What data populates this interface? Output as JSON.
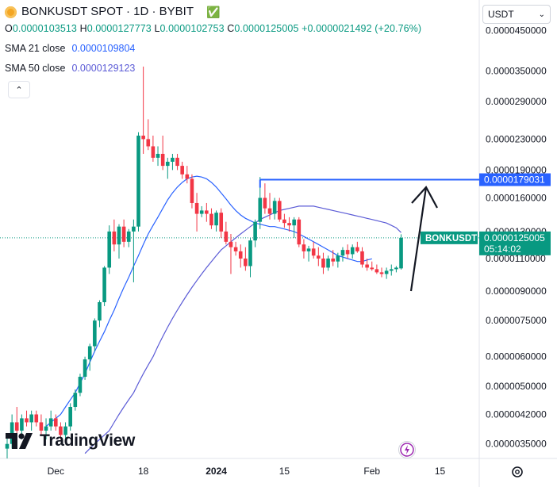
{
  "header": {
    "symbol": "BONKUSDT SPOT · 1D · BYBIT",
    "ohlc": {
      "o_label": "O",
      "o": "0.0000103513",
      "h_label": "H",
      "h": "0.0000127773",
      "l_label": "L",
      "l": "0.0000102753",
      "c_label": "C",
      "c": "0.0000125005",
      "change": "+0.0000021492 (+20.76%)"
    },
    "sma21_label": "SMA 21 close",
    "sma21_value": "0.0000109804",
    "sma50_label": "SMA 50 close",
    "sma50_value": "0.0000129123"
  },
  "controls": {
    "currency": "USDT",
    "collapse_icon": "chevron-up-icon",
    "alert_icon": "lightning-icon",
    "settings_icon": "gear-icon"
  },
  "branding": {
    "logo_text": "TradingView"
  },
  "colors": {
    "up": "#089981",
    "down": "#f23645",
    "sma21": "#2962ff",
    "sma50": "#5b5bd6",
    "level": "#2962ff"
  },
  "price_axis": {
    "ticks": [
      "0.0000450000",
      "0.0000350000",
      "0.0000290000",
      "0.0000230000",
      "0.0000190000",
      "0.0000160000",
      "0.0000130000",
      "0.0000110000",
      "0.0000090000",
      "0.0000075000",
      "0.0000060000",
      "0.0000050000",
      "0.0000042000",
      "0.0000035000"
    ],
    "level_label": "0.0000179031",
    "symbol_tag": "BONKUSDT",
    "last_price": "0.0000125005",
    "countdown": "05:14:02"
  },
  "time_axis": {
    "ticks": [
      "Dec",
      "18",
      "2024",
      "15",
      "Feb",
      "15"
    ]
  },
  "chart_data": {
    "type": "candlestick",
    "scale": "log",
    "ylim": [
      3.2e-06,
      5.3e-05
    ],
    "horizontal_level": 1.79031e-05,
    "series": [
      {
        "name": "BONKUSDT",
        "kind": "candles",
        "ohlc": [
          [
            3.4e-06,
            3.7e-06,
            3.2e-06,
            3.5e-06
          ],
          [
            3.5e-06,
            4.2e-06,
            3.4e-06,
            4e-06
          ],
          [
            4e-06,
            4.4e-06,
            3.7e-06,
            3.8e-06
          ],
          [
            3.8e-06,
            4.2e-06,
            3.6e-06,
            4.1e-06
          ],
          [
            4.1e-06,
            4.3e-06,
            3.9e-06,
            4e-06
          ],
          [
            4e-06,
            4.3e-06,
            3.8e-06,
            4.2e-06
          ],
          [
            4.2e-06,
            4.3e-06,
            3.9e-06,
            4e-06
          ],
          [
            4e-06,
            4.2e-06,
            3.7e-06,
            3.8e-06
          ],
          [
            3.8e-06,
            4.1e-06,
            3.6e-06,
            3.9e-06
          ],
          [
            3.9e-06,
            4.3e-06,
            3.8e-06,
            4.1e-06
          ],
          [
            4.1e-06,
            4.2e-06,
            3.8e-06,
            3.9e-06
          ],
          [
            3.9e-06,
            4e-06,
            3.6e-06,
            3.7e-06
          ],
          [
            3.7e-06,
            4e-06,
            3.6e-06,
            3.9e-06
          ],
          [
            3.9e-06,
            4.5e-06,
            3.8e-06,
            4.4e-06
          ],
          [
            4.4e-06,
            4.9e-06,
            4.3e-06,
            4.8e-06
          ],
          [
            4.8e-06,
            5.4e-06,
            4.7e-06,
            5.3e-06
          ],
          [
            5.3e-06,
            6e-06,
            5.2e-06,
            5.9e-06
          ],
          [
            5.9e-06,
            6.5e-06,
            5.5e-06,
            6.4e-06
          ],
          [
            6.4e-06,
            7.6e-06,
            6.2e-06,
            7.5e-06
          ],
          [
            7.5e-06,
            8.5e-06,
            7.2e-06,
            8.4e-06
          ],
          [
            8.4e-06,
            1.05e-05,
            8.2e-06,
            1.04e-05
          ],
          [
            1.04e-05,
            1.35e-05,
            1e-05,
            1.3e-05
          ],
          [
            1.3e-05,
            1.4e-05,
            1.15e-05,
            1.2e-05
          ],
          [
            1.2e-05,
            1.36e-05,
            1.1e-05,
            1.34e-05
          ],
          [
            1.34e-05,
            1.4e-05,
            1.18e-05,
            1.22e-05
          ],
          [
            1.22e-05,
            1.32e-05,
            1.18e-05,
            1.3e-05
          ],
          [
            1.3e-05,
            1.4e-05,
            9.5e-06,
            1.34e-05
          ],
          [
            1.34e-05,
            2.4e-05,
            1.3e-05,
            2.35e-05
          ],
          [
            2.35e-05,
            3.6e-05,
            2.1e-05,
            2.3e-05
          ],
          [
            2.3e-05,
            2.6e-05,
            2.15e-05,
            2.2e-05
          ],
          [
            2.2e-05,
            2.35e-05,
            2e-05,
            2.05e-05
          ],
          [
            2.05e-05,
            2.2e-05,
            1.95e-05,
            2.1e-05
          ],
          [
            2.1e-05,
            2.35e-05,
            1.9e-05,
            1.95e-05
          ],
          [
            1.95e-05,
            2.05e-05,
            1.8e-05,
            2e-05
          ],
          [
            2e-05,
            2.1e-05,
            1.9e-05,
            2.05e-05
          ],
          [
            2.05e-05,
            2.1e-05,
            1.9e-05,
            1.95e-05
          ],
          [
            1.95e-05,
            2e-05,
            1.8e-05,
            1.85e-05
          ],
          [
            1.85e-05,
            1.95e-05,
            1.75e-05,
            1.8e-05
          ],
          [
            1.8e-05,
            1.85e-05,
            1.5e-05,
            1.55e-05
          ],
          [
            1.55e-05,
            1.65e-05,
            1.3e-05,
            1.45e-05
          ],
          [
            1.45e-05,
            1.52e-05,
            1.42e-05,
            1.48e-05
          ],
          [
            1.48e-05,
            1.55e-05,
            1.38e-05,
            1.45e-05
          ],
          [
            1.45e-05,
            1.5e-05,
            1.32e-05,
            1.35e-05
          ],
          [
            1.35e-05,
            1.48e-05,
            1.3e-05,
            1.46e-05
          ],
          [
            1.46e-05,
            1.5e-05,
            1.25e-05,
            1.3e-05
          ],
          [
            1.3e-05,
            1.38e-05,
            1.2e-05,
            1.22e-05
          ],
          [
            1.22e-05,
            1.28e-05,
            1e-05,
            1.18e-05
          ],
          [
            1.18e-05,
            1.22e-05,
            1.12e-05,
            1.15e-05
          ],
          [
            1.15e-05,
            1.2e-05,
            1.04e-05,
            1.1e-05
          ],
          [
            1.1e-05,
            1.18e-05,
            1.02e-05,
            1.05e-05
          ],
          [
            1.05e-05,
            1.25e-05,
            9.8e-06,
            1.23e-05
          ],
          [
            1.23e-05,
            1.4e-05,
            1.18e-05,
            1.38e-05
          ],
          [
            1.38e-05,
            1.82e-05,
            1.32e-05,
            1.6e-05
          ],
          [
            1.6e-05,
            1.75e-05,
            1.45e-05,
            1.5e-05
          ],
          [
            1.5e-05,
            1.65e-05,
            1.4e-05,
            1.45e-05
          ],
          [
            1.45e-05,
            1.6e-05,
            1.4e-05,
            1.57e-05
          ],
          [
            1.57e-05,
            1.6e-05,
            1.38e-05,
            1.4e-05
          ],
          [
            1.4e-05,
            1.45e-05,
            1.33e-05,
            1.37e-05
          ],
          [
            1.37e-05,
            1.42e-05,
            1.3e-05,
            1.35e-05
          ],
          [
            1.35e-05,
            1.42e-05,
            1.25e-05,
            1.4e-05
          ],
          [
            1.4e-05,
            1.42e-05,
            1.18e-05,
            1.2e-05
          ],
          [
            1.2e-05,
            1.24e-05,
            1.1e-05,
            1.15e-05
          ],
          [
            1.15e-05,
            1.19e-05,
            1.08e-05,
            1.17e-05
          ],
          [
            1.17e-05,
            1.22e-05,
            1.1e-05,
            1.12e-05
          ],
          [
            1.12e-05,
            1.18e-05,
            1.05e-05,
            1.1e-05
          ],
          [
            1.1e-05,
            1.14e-05,
            1e-05,
            1.04e-05
          ],
          [
            1.04e-05,
            1.12e-05,
            1.02e-05,
            1.1e-05
          ],
          [
            1.1e-05,
            1.16e-05,
            1.05e-05,
            1.08e-05
          ],
          [
            1.08e-05,
            1.14e-05,
            1.04e-05,
            1.12e-05
          ],
          [
            1.12e-05,
            1.18e-05,
            1.08e-05,
            1.16e-05
          ],
          [
            1.16e-05,
            1.2e-05,
            1.1e-05,
            1.13e-05
          ],
          [
            1.13e-05,
            1.2e-05,
            1.1e-05,
            1.18e-05
          ],
          [
            1.18e-05,
            1.22e-05,
            1.14e-05,
            1.15e-05
          ],
          [
            1.15e-05,
            1.18e-05,
            1.04e-05,
            1.06e-05
          ],
          [
            1.06e-05,
            1.1e-05,
            1.02e-05,
            1.04e-05
          ],
          [
            1.04e-05,
            1.08e-05,
            1.02e-05,
            1.03e-05
          ],
          [
            1.03e-05,
            1.06e-05,
            1e-05,
            1.01e-05
          ],
          [
            1.01e-05,
            1.04e-05,
            9.8e-06,
            1e-05
          ],
          [
            1e-05,
            1.04e-05,
            9.7e-06,
            1.02e-05
          ],
          [
            1.02e-05,
            1.06e-05,
            9.9e-06,
            1.03e-05
          ],
          [
            1.03e-05,
            1.05e-05,
            1.01e-05,
            1.04e-05
          ],
          [
            1.03513e-05,
            1.27773e-05,
            1.02753e-05,
            1.25005e-05
          ]
        ]
      },
      {
        "name": "SMA 21 close",
        "kind": "line",
        "from_index": 8,
        "values": [
          3.9e-06,
          4e-06,
          4.1e-06,
          4.2e-06,
          4.4e-06,
          4.6e-06,
          4.8e-06,
          5.1e-06,
          5.4e-06,
          5.8e-06,
          6.2e-06,
          6.6e-06,
          7e-06,
          7.5e-06,
          8e-06,
          8.6e-06,
          9.2e-06,
          9.8e-06,
          1.05e-05,
          1.12e-05,
          1.2e-05,
          1.28e-05,
          1.35e-05,
          1.42e-05,
          1.5e-05,
          1.58e-05,
          1.65e-05,
          1.71e-05,
          1.76e-05,
          1.8e-05,
          1.82e-05,
          1.83e-05,
          1.82e-05,
          1.8e-05,
          1.76e-05,
          1.71e-05,
          1.65e-05,
          1.59e-05,
          1.53e-05,
          1.48e-05,
          1.44e-05,
          1.41e-05,
          1.39e-05,
          1.37e-05,
          1.36e-05,
          1.35e-05,
          1.34e-05,
          1.34e-05,
          1.33e-05,
          1.32e-05,
          1.31e-05,
          1.3e-05,
          1.28e-05,
          1.26e-05,
          1.24e-05,
          1.22e-05,
          1.2e-05,
          1.18e-05,
          1.16e-05,
          1.14e-05,
          1.12e-05,
          1.11e-05,
          1.1e-05,
          1.09e-05,
          1.08e-05,
          1.08e-05,
          1.09e-05,
          1.09804e-05
        ]
      },
      {
        "name": "SMA 50 close",
        "kind": "line",
        "from_index": 16,
        "values": [
          3.3e-06,
          3.4e-06,
          3.5e-06,
          3.6e-06,
          3.7e-06,
          3.8e-06,
          4e-06,
          4.2e-06,
          4.4e-06,
          4.6e-06,
          4.8e-06,
          5.1e-06,
          5.4e-06,
          5.7e-06,
          6e-06,
          6.4e-06,
          6.8e-06,
          7.2e-06,
          7.6e-06,
          8e-06,
          8.4e-06,
          8.8e-06,
          9.2e-06,
          9.6e-06,
          1e-05,
          1.04e-05,
          1.08e-05,
          1.12e-05,
          1.16e-05,
          1.19e-05,
          1.22e-05,
          1.25e-05,
          1.28e-05,
          1.31e-05,
          1.34e-05,
          1.37e-05,
          1.4e-05,
          1.42e-05,
          1.44e-05,
          1.46e-05,
          1.48e-05,
          1.49e-05,
          1.5e-05,
          1.51e-05,
          1.52e-05,
          1.52e-05,
          1.52e-05,
          1.52e-05,
          1.51e-05,
          1.5e-05,
          1.49e-05,
          1.48e-05,
          1.47e-05,
          1.46e-05,
          1.45e-05,
          1.44e-05,
          1.43e-05,
          1.42e-05,
          1.41e-05,
          1.4e-05,
          1.39e-05,
          1.38e-05,
          1.37e-05,
          1.35e-05,
          1.33e-05,
          1.29123e-05
        ]
      }
    ]
  }
}
